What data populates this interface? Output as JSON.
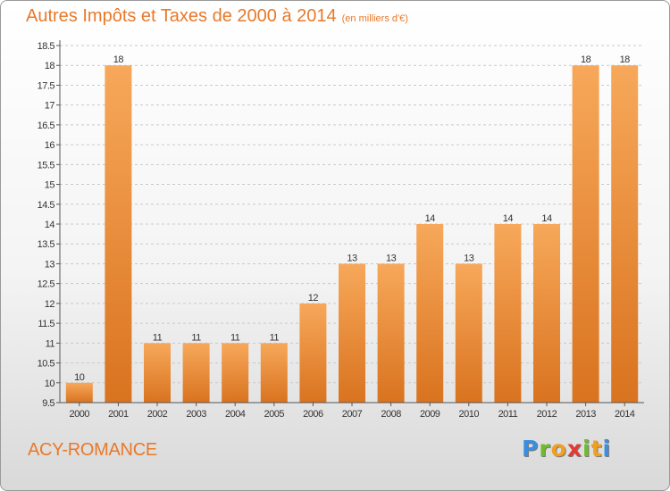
{
  "title": "Autres Impôts et Taxes de 2000 à 2014",
  "title_unit": "(en milliers d'€)",
  "commune": "ACY-ROMANCE",
  "brand": {
    "letters": [
      "P",
      "r",
      "o",
      "x",
      "i",
      "t",
      "i"
    ],
    "colors": [
      "#3a8ee0",
      "#6dbb2f",
      "#f0a022",
      "#e53a33",
      "#6dbb2f",
      "#f0a022",
      "#3a8ee0"
    ]
  },
  "colors": {
    "bar_light": "#f7a85a",
    "bar_dark": "#d9731f",
    "title": "#e8792a"
  },
  "chart_data": {
    "type": "bar",
    "categories": [
      "2000",
      "2001",
      "2002",
      "2003",
      "2004",
      "2005",
      "2006",
      "2007",
      "2008",
      "2009",
      "2010",
      "2011",
      "2012",
      "2013",
      "2014"
    ],
    "values": [
      10,
      18,
      11,
      11,
      11,
      11,
      12,
      13,
      13,
      14,
      13,
      14,
      14,
      18,
      18
    ],
    "value_labels": [
      "10",
      "18",
      "11",
      "11",
      "11",
      "11",
      "12",
      "13",
      "13",
      "14",
      "13",
      "14",
      "14",
      "18",
      "18"
    ],
    "ylim": [
      9.5,
      18.5
    ],
    "yticks": [
      9.5,
      10,
      10.5,
      11,
      11.5,
      12,
      12.5,
      13,
      13.5,
      14,
      14.5,
      15,
      15.5,
      16,
      16.5,
      17,
      17.5,
      18,
      18.5
    ],
    "ytick_labels": [
      "9.5",
      "10",
      "10.5",
      "11",
      "11.5",
      "12",
      "12.5",
      "13",
      "13.5",
      "14",
      "14.5",
      "15",
      "15.5",
      "16",
      "16.5",
      "17",
      "17.5",
      "18",
      "18.5"
    ],
    "grid": "horizontal dashed",
    "legend": "none"
  }
}
